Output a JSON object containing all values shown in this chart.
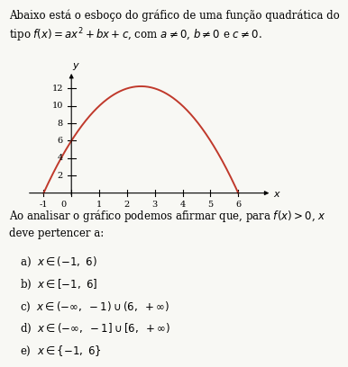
{
  "parabola_roots": [
    -1,
    6
  ],
  "curve_color": "#c0392b",
  "bg_color": "#f8f8f4",
  "xlim": [
    -1.6,
    7.2
  ],
  "ylim": [
    -1.5,
    14.5
  ],
  "x_ticks": [
    -1,
    0,
    1,
    2,
    3,
    4,
    5,
    6
  ],
  "y_ticks": [
    2,
    4,
    6,
    8,
    10,
    12
  ],
  "axis_label_x": "$x$",
  "axis_label_y": "$y$",
  "top_line1": "Abaixo está o esboço do gráfico de uma função quadrática do",
  "top_line2": "tipo $f(x) = ax^2 + bx + c$, com $a \\neq 0$, $b \\neq 0$ e $c \\neq 0$.",
  "question_line1": "Ao analisar o gráfico podemos afirmar que, para $f(x) > 0$, $x$",
  "question_line2": "deve pertencer a:",
  "opt_a": "a)  $x \\in (-1,\\ 6)$",
  "opt_b": "b)  $x \\in [-1,\\ 6]$",
  "opt_c": "c)  $x \\in (-\\infty,\\ -1) \\cup (6,\\ +\\infty)$",
  "opt_d": "d)  $x \\in (-\\infty,\\ -1] \\cup [6,\\ +\\infty)$",
  "opt_e": "e)  $x \\in \\{-1,\\ 6\\}$",
  "text_fontsize": 8.5,
  "tick_fontsize": 7.0,
  "axis_arrow_color": "black",
  "tick_lw": 0.8,
  "curve_lw": 1.4
}
